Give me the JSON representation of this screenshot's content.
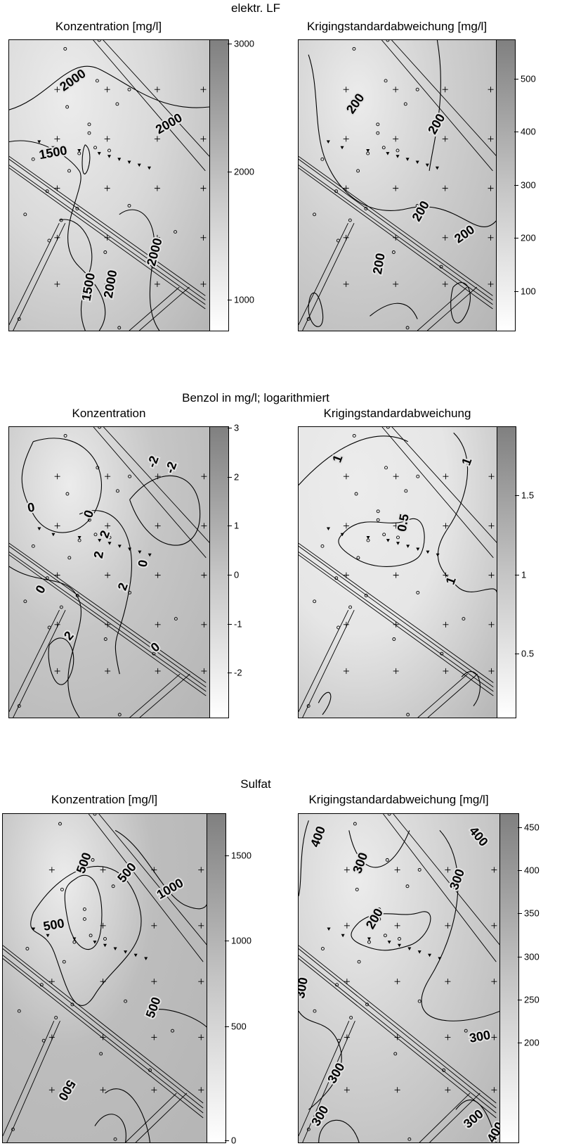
{
  "groups": [
    {
      "title": "elektr. LF",
      "panels": [
        {
          "title": "Konzentration [mg/l]",
          "ticks": [
            "3000",
            "2000",
            "1000"
          ],
          "labels": [
            "2000",
            "2000",
            "1500",
            "2000",
            "1500",
            "2000"
          ]
        },
        {
          "title": "Krigingstandardabweichung [mg/l]",
          "ticks": [
            "500",
            "400",
            "300",
            "200",
            "100"
          ],
          "labels": [
            "200",
            "200",
            "200",
            "200",
            "200"
          ]
        }
      ]
    },
    {
      "title": "Benzol in mg/l; logarithmiert",
      "panels": [
        {
          "title": "Konzentration",
          "ticks": [
            "3",
            "2",
            "1",
            "0",
            "-1",
            "-2"
          ],
          "labels": [
            "-2",
            "0",
            "-2",
            "0",
            "2",
            "0",
            "2",
            "0",
            "2",
            "2",
            "0"
          ]
        },
        {
          "title": "Krigingstandardabweichung",
          "ticks": [
            "1.5",
            "1",
            "0.5"
          ],
          "labels": [
            "1",
            "1",
            "0.5",
            "1"
          ]
        }
      ]
    },
    {
      "title": "Sulfat",
      "panels": [
        {
          "title": "Konzentration [mg/l]",
          "ticks": [
            "1500",
            "1000",
            "500",
            "0"
          ],
          "labels": [
            "500",
            "500",
            "1000",
            "500",
            "500",
            "500"
          ]
        },
        {
          "title": "Krigingstandardabweichung [mg/l]",
          "ticks": [
            "450",
            "400",
            "350",
            "300",
            "250",
            "200"
          ],
          "labels": [
            "400",
            "300",
            "400",
            "300",
            "200",
            "300",
            "300",
            "300",
            "300",
            "300",
            "400"
          ]
        }
      ]
    }
  ],
  "chart_data": [
    {
      "type": "heatmap",
      "title": "elektr. LF",
      "subtitle": "Konzentration [mg/l]",
      "colorbar_ticks": [
        3000,
        2000,
        1000
      ],
      "contour_levels": [
        1500,
        2000
      ]
    },
    {
      "type": "heatmap",
      "title": "elektr. LF",
      "subtitle": "Krigingstandardabweichung [mg/l]",
      "colorbar_ticks": [
        500,
        400,
        300,
        200,
        100
      ],
      "contour_levels": [
        200
      ]
    },
    {
      "type": "heatmap",
      "title": "Benzol in mg/l; logarithmiert",
      "subtitle": "Konzentration",
      "colorbar_ticks": [
        3,
        2,
        1,
        0,
        -1,
        -2
      ],
      "contour_levels": [
        -2,
        0,
        2
      ]
    },
    {
      "type": "heatmap",
      "title": "Benzol in mg/l; logarithmiert",
      "subtitle": "Krigingstandardabweichung",
      "colorbar_ticks": [
        1.5,
        1,
        0.5
      ],
      "contour_levels": [
        0.5,
        1
      ]
    },
    {
      "type": "heatmap",
      "title": "Sulfat",
      "subtitle": "Konzentration [mg/l]",
      "colorbar_ticks": [
        1500,
        1000,
        500,
        0
      ],
      "contour_levels": [
        500,
        1000
      ]
    },
    {
      "type": "heatmap",
      "title": "Sulfat",
      "subtitle": "Krigingstandardabweichung [mg/l]",
      "colorbar_ticks": [
        450,
        400,
        350,
        300,
        250,
        200
      ],
      "contour_levels": [
        200,
        300,
        400
      ]
    }
  ]
}
